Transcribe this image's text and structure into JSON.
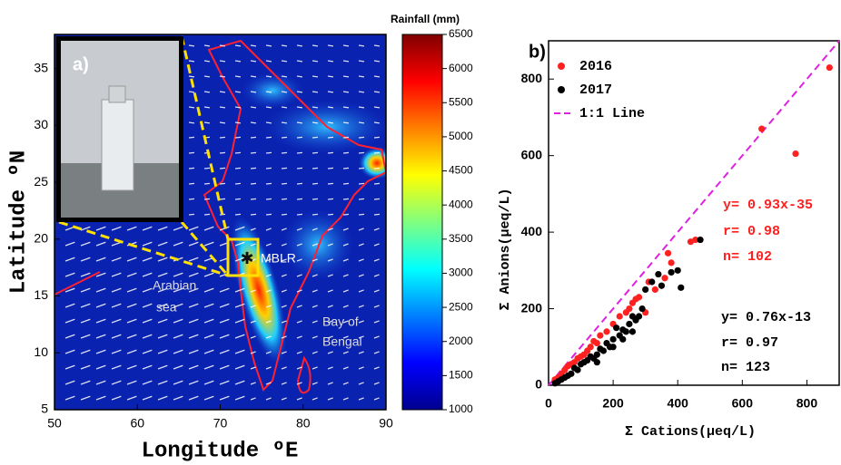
{
  "chart_data": [
    {
      "type": "map",
      "xlabel": "Longitude ºE",
      "ylabel": "Latitude ºN",
      "xlim": [
        50,
        90
      ],
      "xticks": [
        50,
        60,
        70,
        80,
        90
      ],
      "ylim": [
        5,
        38
      ],
      "yticks": [
        5,
        10,
        15,
        20,
        25,
        30,
        35
      ],
      "colorbar_label": "Rainfall (mm)",
      "clim": [
        1000,
        6500
      ],
      "cticks": [
        1000,
        1500,
        2000,
        2500,
        3000,
        3500,
        4000,
        4500,
        5000,
        5500,
        6000,
        6500
      ],
      "annotations": [
        "a)",
        "MBLR",
        "Arabian",
        "sea",
        "Bay of",
        "Bengal"
      ]
    },
    {
      "type": "scatter",
      "title": "b)",
      "xlabel": "Σ Cations(μeq/L)",
      "ylabel": "Σ Anions(μeq/L)",
      "xlim": [
        0,
        900
      ],
      "xticks": [
        0,
        200,
        400,
        600,
        800
      ],
      "ylim": [
        0,
        900
      ],
      "yticks": [
        0,
        200,
        400,
        600,
        800
      ],
      "legend": "upper left",
      "series": [
        {
          "name": "2016",
          "color": "#ff2020",
          "x": [
            660,
            765,
            870,
            455,
            440,
            380,
            360,
            370,
            270,
            260,
            250,
            240,
            200,
            180,
            160,
            150,
            120,
            100,
            90,
            80,
            60,
            50,
            40,
            30,
            20,
            220,
            310,
            280,
            130,
            110,
            70,
            300,
            330,
            140
          ],
          "values": [
            670,
            605,
            830,
            380,
            375,
            320,
            280,
            345,
            225,
            215,
            200,
            190,
            160,
            140,
            130,
            110,
            90,
            75,
            70,
            60,
            50,
            40,
            30,
            20,
            15,
            180,
            270,
            230,
            100,
            80,
            55,
            190,
            250,
            115
          ]
        },
        {
          "name": "2017",
          "color": "#000000",
          "x": [
            470,
            400,
            410,
            380,
            340,
            320,
            300,
            290,
            280,
            260,
            250,
            240,
            230,
            220,
            210,
            200,
            190,
            180,
            170,
            160,
            150,
            140,
            130,
            120,
            110,
            100,
            90,
            80,
            70,
            60,
            50,
            40,
            30,
            20,
            270,
            230,
            350,
            260,
            200,
            150
          ],
          "values": [
            380,
            300,
            255,
            295,
            290,
            270,
            250,
            200,
            180,
            180,
            160,
            140,
            145,
            130,
            150,
            120,
            100,
            110,
            90,
            95,
            80,
            70,
            75,
            65,
            60,
            55,
            40,
            45,
            30,
            25,
            20,
            15,
            10,
            5,
            170,
            120,
            260,
            140,
            100,
            60
          ]
        }
      ],
      "reference_line": {
        "name": "1:1 Line",
        "color": "#e020e0"
      },
      "annotations": [
        {
          "text": "y= 0.93x-35",
          "color": "#ff2020"
        },
        {
          "text": "r= 0.98",
          "color": "#ff2020"
        },
        {
          "text": "n= 102",
          "color": "#ff2020"
        },
        {
          "text": "y= 0.76x-13",
          "color": "#000000"
        },
        {
          "text": "r= 0.97",
          "color": "#000000"
        },
        {
          "text": "n= 123",
          "color": "#000000"
        }
      ]
    }
  ]
}
